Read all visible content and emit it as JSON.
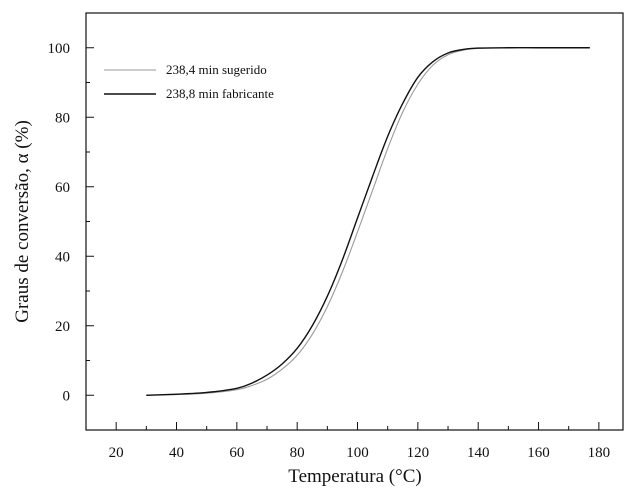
{
  "chart_data": {
    "type": "line",
    "xlabel": "Temperatura (°C)",
    "ylabel": "Graus de conversão, α (%)",
    "xlim": [
      10,
      188
    ],
    "ylim": [
      -10,
      110
    ],
    "x_ticks": [
      20,
      40,
      60,
      80,
      100,
      120,
      140,
      160,
      180
    ],
    "y_ticks": [
      0,
      20,
      40,
      60,
      80,
      100
    ],
    "grid": false,
    "legend_position": "top-left",
    "series": [
      {
        "name": "238,4 min sugerido",
        "color": "#9a9a9a",
        "x": [
          30,
          40,
          50,
          60,
          65,
          70,
          75,
          80,
          85,
          90,
          95,
          100,
          105,
          110,
          115,
          120,
          125,
          130,
          135,
          140,
          150,
          160,
          170,
          177
        ],
        "y": [
          0,
          0.2,
          0.6,
          1.6,
          2.8,
          4.6,
          7.5,
          11.5,
          17.5,
          25.5,
          35.5,
          47,
          59,
          71,
          81.5,
          89.5,
          95,
          98,
          99.3,
          99.8,
          100,
          100,
          100,
          100
        ]
      },
      {
        "name": "238,8 min fabricante",
        "color": "#111111",
        "x": [
          30,
          40,
          50,
          60,
          65,
          70,
          75,
          80,
          85,
          90,
          95,
          100,
          105,
          110,
          115,
          120,
          125,
          130,
          135,
          140,
          150,
          160,
          170,
          177
        ],
        "y": [
          0,
          0.3,
          0.8,
          2.0,
          3.5,
          5.8,
          9.0,
          13.5,
          20,
          28.5,
          39,
          51,
          63,
          74.5,
          84,
          91.5,
          96,
          98.5,
          99.5,
          99.9,
          100,
          100,
          100,
          100
        ]
      }
    ]
  }
}
